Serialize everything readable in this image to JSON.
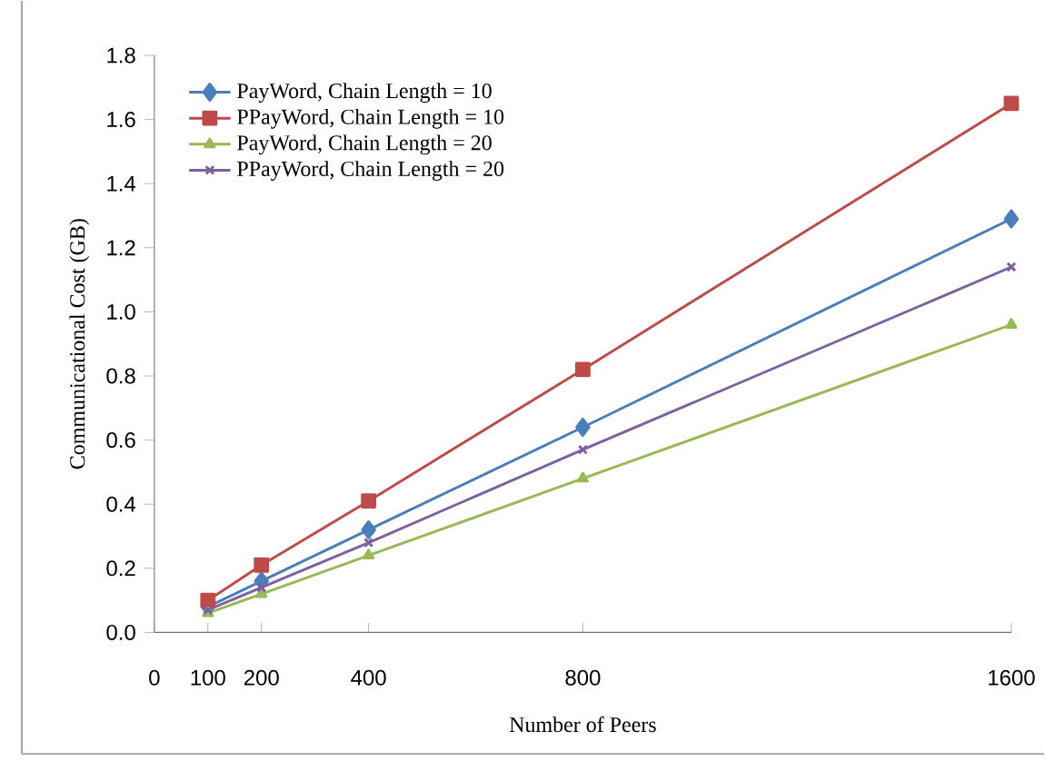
{
  "chart_data": {
    "type": "line",
    "xlabel": "Number of Peers",
    "ylabel": "Communicational Cost (GB)",
    "x": [
      100,
      200,
      400,
      800,
      1600
    ],
    "xlim": [
      0,
      1600
    ],
    "xticks": [
      0,
      100,
      200,
      400,
      800,
      1600
    ],
    "ylim": [
      0,
      1.8
    ],
    "yticks": [
      {
        "value": 0,
        "label": "0.0"
      },
      {
        "value": 0.2,
        "label": "0.2"
      },
      {
        "value": 0.4,
        "label": "0.4"
      },
      {
        "value": 0.6,
        "label": "0.6"
      },
      {
        "value": 0.8,
        "label": "0.8"
      },
      {
        "value": 1.0,
        "label": "1.0"
      },
      {
        "value": 1.2,
        "label": "1.2"
      },
      {
        "value": 1.4,
        "label": "1.4"
      },
      {
        "value": 1.6,
        "label": "1.6"
      },
      {
        "value": 1.8,
        "label": "1.8"
      }
    ],
    "legend": "top left",
    "grid": false,
    "series": [
      {
        "name": "PayWord, Chain Length = 10",
        "color": "#4a7ebb",
        "marker": "diamond",
        "values": [
          0.08,
          0.16,
          0.32,
          0.64,
          1.29
        ]
      },
      {
        "name": "PPayWord, Chain Length = 10",
        "color": "#be4b48",
        "marker": "square",
        "values": [
          0.1,
          0.21,
          0.41,
          0.82,
          1.65
        ]
      },
      {
        "name": "PayWord, Chain Length = 20",
        "color": "#98b954",
        "marker": "triangle",
        "values": [
          0.06,
          0.12,
          0.24,
          0.48,
          0.96
        ]
      },
      {
        "name": "PPayWord, Chain Length = 20",
        "color": "#7d60a0",
        "marker": "cross",
        "values": [
          0.07,
          0.14,
          0.28,
          0.57,
          1.14
        ]
      }
    ]
  }
}
